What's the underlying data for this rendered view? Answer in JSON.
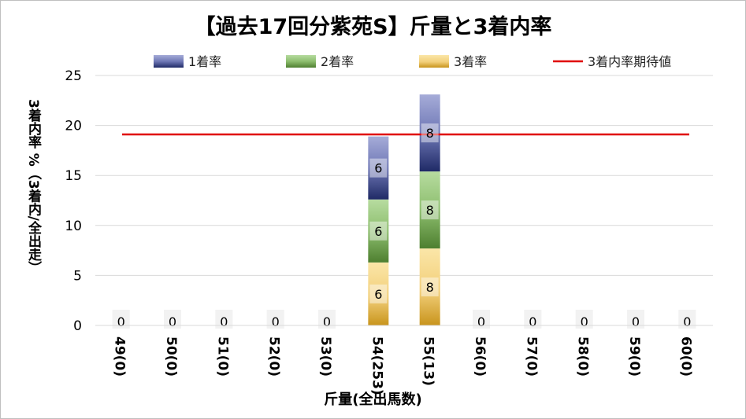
{
  "chart_data": {
    "type": "bar",
    "title": "【過去17回分紫苑S】斤量と3着内率",
    "ylabel": "3着内率 %（3着内/全出走）",
    "xlabel": "斤量(全出馬数)",
    "categories": [
      "49(0)",
      "50(0)",
      "51(0)",
      "52(0)",
      "53(0)",
      "54(253)",
      "55(13)",
      "56(0)",
      "57(0)",
      "58(0)",
      "59(0)",
      "60(0)"
    ],
    "ylim": [
      0,
      25
    ],
    "yticks": [
      0,
      5,
      10,
      15,
      20,
      25
    ],
    "grid": true,
    "legend_position": "top",
    "series": [
      {
        "name": "3着率",
        "values": [
          0,
          0,
          0,
          0,
          0,
          6.3,
          7.7,
          0,
          0,
          0,
          0,
          0
        ],
        "color": "#e8b84a"
      },
      {
        "name": "2着率",
        "values": [
          0,
          0,
          0,
          0,
          0,
          6.3,
          7.7,
          0,
          0,
          0,
          0,
          0
        ],
        "color": "#6a9a48"
      },
      {
        "name": "1着率",
        "values": [
          0,
          0,
          0,
          0,
          0,
          6.3,
          7.7,
          0,
          0,
          0,
          0,
          0
        ],
        "color": "#3d4a8c"
      }
    ],
    "data_labels": [
      [
        "0",
        "0",
        "0",
        "0",
        "0",
        "6",
        "8",
        "0",
        "0",
        "0",
        "0",
        "0"
      ],
      [
        "",
        "",
        "",
        "",
        "",
        "6",
        "8",
        "",
        "",
        "",
        "",
        ""
      ],
      [
        "",
        "",
        "",
        "",
        "",
        "6",
        "8",
        "",
        "",
        "",
        "",
        ""
      ]
    ],
    "reference_line": {
      "name": "3着内率期待値",
      "value": 19.1,
      "color": "#e00000"
    },
    "legend_order": [
      "1着率",
      "2着率",
      "3着率",
      "3着内率期待値"
    ]
  }
}
